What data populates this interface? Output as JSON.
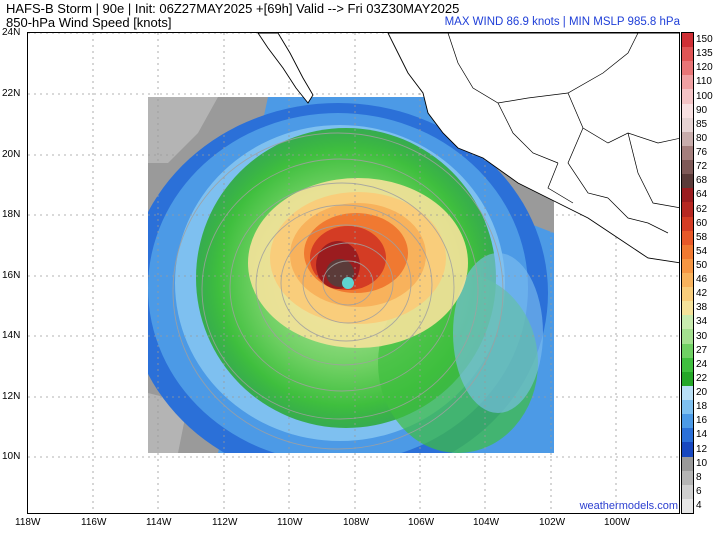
{
  "header": {
    "title_line1": "HAFS-B Storm | 90e | Init: 06Z27MAY2025 +[69h] Valid --> Fri 03Z30MAY2025",
    "title_line2": "850-hPa Wind Speed [knots]",
    "max_info": "MAX WIND 86.9 knots | MIN MSLP 985.8 hPa"
  },
  "map": {
    "lat_labels": [
      "24N",
      "22N",
      "20N",
      "18N",
      "16N",
      "14N",
      "12N",
      "10N"
    ],
    "lon_labels": [
      "118W",
      "116W",
      "114W",
      "112W",
      "110W",
      "108W",
      "106W",
      "104W",
      "102W",
      "100W"
    ],
    "storm_center_lat": 16.0,
    "storm_center_lon": -108.2,
    "domain_lat_range": [
      10.1,
      21.9
    ],
    "domain_lon_range": [
      -114.1,
      -102.0
    ]
  },
  "colorbar": {
    "labels": [
      "150",
      "135",
      "120",
      "110",
      "100",
      "90",
      "85",
      "80",
      "76",
      "72",
      "68",
      "64",
      "62",
      "60",
      "58",
      "54",
      "50",
      "46",
      "42",
      "38",
      "34",
      "30",
      "27",
      "24",
      "22",
      "20",
      "18",
      "16",
      "14",
      "12",
      "10",
      "8",
      "6",
      "4"
    ],
    "colors": [
      "#cf2f35",
      "#e05555",
      "#e87576",
      "#f0a0a2",
      "#f4c3c5",
      "#f8e0e1",
      "#e6d3d3",
      "#c8acab",
      "#a47e7c",
      "#7f5957",
      "#5b3b39",
      "#9b1c1f",
      "#b62822",
      "#d43c24",
      "#e75828",
      "#f07931",
      "#f69643",
      "#f8b25c",
      "#f9cd7b",
      "#f5e29a",
      "#c8ebaf",
      "#a3e08f",
      "#6fd063",
      "#3fbf3e",
      "#25a728",
      "#b9e0f6",
      "#7ec0f0",
      "#4c9ae6",
      "#2b70d8",
      "#1848c0",
      "#9a9a9a",
      "#b4b4b4",
      "#cfcfcf",
      "#e6e6e6"
    ]
  },
  "footer": {
    "watermark": "weathermodels.com"
  }
}
